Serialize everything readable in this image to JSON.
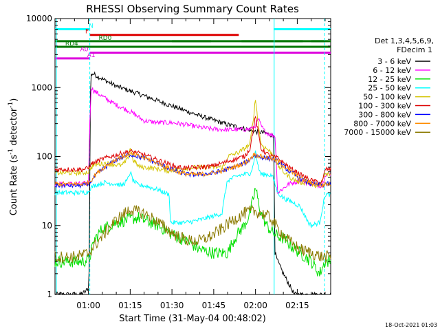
{
  "chart_data": {
    "type": "line",
    "title": "RHESSI Observing Summary Count Rates",
    "xlabel": "Start Time (31-May-04 00:48:02)",
    "ylabel_main": "Count Rate (s",
    "ylabel_sup": "-1",
    "ylabel_mid": " detector",
    "ylabel_end": ")",
    "y_scale": "log",
    "ylim": [
      1,
      10000
    ],
    "xlim_min": [
      48,
      147
    ],
    "x_ticks": [
      "01:00",
      "01:15",
      "01:30",
      "01:45",
      "02:00",
      "02:15"
    ],
    "x_tick_minutes": [
      60,
      75,
      90,
      105,
      120,
      135
    ],
    "y_ticks": [
      "1",
      "10",
      "100",
      "1000",
      "10000"
    ],
    "y_tick_values": [
      1,
      10,
      100,
      1000,
      10000
    ],
    "footer_date": "18-Oct-2021 01:03",
    "legend": {
      "header1": "Det 1,3,4,5,6,9,",
      "header2": "FDecim 1",
      "entries": [
        {
          "label": "3 - 6 keV",
          "color": "#000000"
        },
        {
          "label": "6 - 12 keV",
          "color": "#ff00ff"
        },
        {
          "label": "12 - 25 keV",
          "color": "#00e000"
        },
        {
          "label": "25 - 50 keV",
          "color": "#00ffff"
        },
        {
          "label": "50 - 100 keV",
          "color": "#d4c400"
        },
        {
          "label": "100 - 300 keV",
          "color": "#dd0000"
        },
        {
          "label": "300 - 800 keV",
          "color": "#0000ff"
        },
        {
          "label": "800 - 7000 keV",
          "color": "#ff8c00"
        },
        {
          "label": "7000 - 15000 keV",
          "color": "#8b7a00"
        }
      ]
    },
    "flags": [
      {
        "label": "N",
        "color": "#00ffff",
        "segments": [
          [
            48,
            60.5
          ],
          [
            126.5,
            147
          ]
        ]
      },
      {
        "label": "F",
        "color": "#dd0000",
        "segments": [
          [
            60.5,
            114
          ]
        ]
      },
      {
        "label": "RD0",
        "color": "#007700",
        "segments": [
          [
            48,
            145
          ],
          [
            90,
            104
          ],
          [
            115,
            137
          ],
          [
            140,
            147
          ]
        ]
      },
      {
        "label": "RD4",
        "color": "#007700",
        "segments": [
          [
            48,
            91
          ],
          [
            90,
            147
          ]
        ]
      },
      {
        "label": "A0",
        "color": "#dd00dd",
        "segments": [
          [
            60.5,
            147
          ]
        ]
      },
      {
        "label": "A1",
        "color": "#dd00dd",
        "segments": [
          [
            48,
            60.5
          ]
        ]
      }
    ],
    "flag_label_minutes": {
      "N": 61,
      "F": 59.5,
      "RD0": 66,
      "RD4": 54,
      "A0": 58.5,
      "A1": 61
    },
    "vertical_markers": [
      {
        "minute": 48.5,
        "style": "solid",
        "color": "#00ffff"
      },
      {
        "minute": 60.5,
        "style": "dashed",
        "color": "#00ffff"
      },
      {
        "minute": 126.7,
        "style": "solid",
        "color": "#00ffff"
      },
      {
        "minute": 144.8,
        "style": "dashed",
        "color": "#00ffff"
      }
    ],
    "series": [
      {
        "name": "3 - 6 keV",
        "color": "#000000",
        "x": [
          48,
          57,
          59,
          60.2,
          60.8,
          61.5,
          64,
          70,
          80,
          90,
          100,
          110,
          115,
          120,
          123,
          125,
          126.5,
          127,
          128,
          130,
          134
        ],
        "values": [
          1,
          1,
          1.1,
          1.3,
          1500,
          1600,
          1400,
          1050,
          760,
          540,
          390,
          290,
          260,
          230,
          220,
          210,
          200,
          4,
          3,
          2,
          1
        ]
      },
      {
        "name": "6 - 12 keV",
        "color": "#ff00ff",
        "x": [
          48,
          58,
          60,
          60.5,
          61,
          62,
          66,
          70,
          75,
          80,
          85,
          90,
          95,
          100,
          105,
          110,
          115,
          118,
          120,
          121,
          122,
          123,
          125,
          127,
          128,
          132,
          136,
          140,
          143,
          144,
          145,
          147
        ],
        "values": [
          40,
          40,
          42,
          300,
          1000,
          900,
          700,
          560,
          450,
          330,
          310,
          310,
          290,
          265,
          250,
          245,
          245,
          250,
          280,
          350,
          280,
          240,
          210,
          200,
          30,
          40,
          45,
          40,
          38,
          38,
          55,
          55
        ]
      },
      {
        "name": "12 - 25 keV",
        "color": "#00e000",
        "x": [
          48,
          58,
          60,
          61,
          62,
          65,
          70,
          75,
          78,
          80,
          85,
          90,
          95,
          100,
          105,
          110,
          112,
          114,
          116,
          118,
          119,
          120,
          121,
          122,
          124,
          126,
          128,
          130,
          133,
          136,
          138,
          140,
          143,
          145,
          147
        ],
        "values": [
          3,
          3,
          3.2,
          4,
          6,
          9,
          11,
          12.5,
          13,
          12,
          10,
          7.5,
          6,
          4.5,
          4,
          4,
          6,
          8,
          10,
          15,
          22,
          35,
          22,
          15,
          10,
          8,
          7,
          6.5,
          5,
          4,
          3.5,
          3,
          2,
          3,
          3
        ]
      },
      {
        "name": "25 - 50 keV",
        "color": "#00ffff",
        "x": [
          48,
          58,
          60,
          60.5,
          62,
          66,
          70,
          72,
          74,
          75,
          76,
          78,
          80,
          85,
          89,
          89.5,
          95,
          100,
          108,
          109,
          110,
          114,
          116,
          118,
          119,
          120,
          121,
          122,
          124,
          126,
          128,
          130,
          133,
          136,
          139,
          140,
          143,
          145,
          147
        ],
        "values": [
          30,
          30,
          31,
          34,
          38,
          42,
          40,
          38,
          45,
          60,
          45,
          38,
          38,
          33,
          28,
          11,
          11,
          12,
          15,
          28,
          45,
          53,
          55,
          57,
          70,
          120,
          70,
          55,
          55,
          53,
          30,
          25,
          22,
          19,
          11,
          10,
          11,
          28,
          28
        ]
      },
      {
        "name": "50 - 100 keV",
        "color": "#d4c400",
        "x": [
          48,
          58,
          60,
          60.5,
          62,
          66,
          70,
          72,
          74,
          75,
          76,
          78,
          80,
          85,
          89,
          89.5,
          95,
          100,
          108,
          109,
          110,
          114,
          116,
          118,
          119,
          120,
          121,
          122,
          124,
          126,
          128,
          130,
          133,
          136,
          139,
          140,
          143,
          145,
          147
        ],
        "values": [
          58,
          58,
          60,
          66,
          75,
          80,
          76,
          74,
          90,
          135,
          90,
          72,
          70,
          66,
          62,
          63,
          68,
          70,
          70,
          75,
          100,
          115,
          130,
          150,
          300,
          680,
          300,
          150,
          130,
          110,
          75,
          60,
          48,
          42,
          42,
          39,
          38,
          55,
          55
        ]
      },
      {
        "name": "100 - 300 keV",
        "color": "#dd0000",
        "x": [
          48,
          58,
          60,
          60.5,
          63,
          66,
          70,
          73,
          75,
          77,
          80,
          84,
          88,
          92,
          96,
          100,
          104,
          108,
          112,
          116,
          118,
          119,
          120,
          121,
          122,
          124,
          126,
          128,
          132,
          136,
          140,
          143,
          144,
          145,
          147
        ],
        "values": [
          65,
          65,
          68,
          75,
          85,
          95,
          105,
          115,
          118,
          115,
          105,
          92,
          80,
          70,
          68,
          70,
          72,
          80,
          90,
          100,
          130,
          220,
          380,
          220,
          130,
          110,
          100,
          95,
          70,
          55,
          45,
          42,
          42,
          65,
          65
        ]
      },
      {
        "name": "300 - 800 keV",
        "color": "#0000ff",
        "x": [
          48,
          58,
          60,
          60.5,
          63,
          66,
          70,
          74,
          75,
          76,
          80,
          84,
          88,
          92,
          96,
          100,
          104,
          108,
          112,
          116,
          118,
          119.5,
          121,
          124,
          126,
          128,
          132,
          136,
          140,
          144,
          145,
          147
        ],
        "values": [
          38,
          38,
          40,
          42,
          55,
          70,
          90,
          105,
          108,
          105,
          95,
          82,
          70,
          60,
          55,
          55,
          57,
          62,
          70,
          80,
          90,
          105,
          100,
          95,
          92,
          85,
          62,
          48,
          40,
          38,
          40,
          40
        ]
      },
      {
        "name": "800 - 7000 keV",
        "color": "#ff8c00",
        "x": [
          48,
          58,
          60,
          60.5,
          63,
          66,
          70,
          74,
          75,
          76,
          80,
          84,
          88,
          92,
          96,
          100,
          104,
          108,
          112,
          116,
          118,
          119.5,
          121,
          124,
          126,
          128,
          132,
          136,
          140,
          144,
          145,
          147
        ],
        "values": [
          40,
          40,
          42,
          44,
          57,
          72,
          92,
          106,
          110,
          106,
          96,
          83,
          70,
          60,
          55,
          55,
          57,
          62,
          70,
          80,
          92,
          108,
          102,
          96,
          92,
          86,
          63,
          49,
          41,
          38,
          40,
          40
        ]
      },
      {
        "name": "7000 - 15000 keV",
        "color": "#8b7a00",
        "x": [
          48,
          55,
          58,
          60,
          62,
          65,
          68,
          71,
          74,
          75,
          77,
          80,
          84,
          88,
          92,
          96,
          100,
          104,
          108,
          112,
          116,
          118,
          120,
          122,
          124,
          126,
          128,
          132,
          136,
          140,
          144,
          147
        ],
        "values": [
          3.5,
          3.5,
          3.7,
          4,
          5,
          7,
          10,
          13,
          16,
          17,
          16,
          15,
          12,
          9,
          7,
          6,
          6,
          7,
          9,
          12,
          15,
          16,
          16,
          15,
          14,
          12,
          9,
          6,
          4.5,
          4,
          3.5,
          3.5
        ]
      }
    ]
  }
}
